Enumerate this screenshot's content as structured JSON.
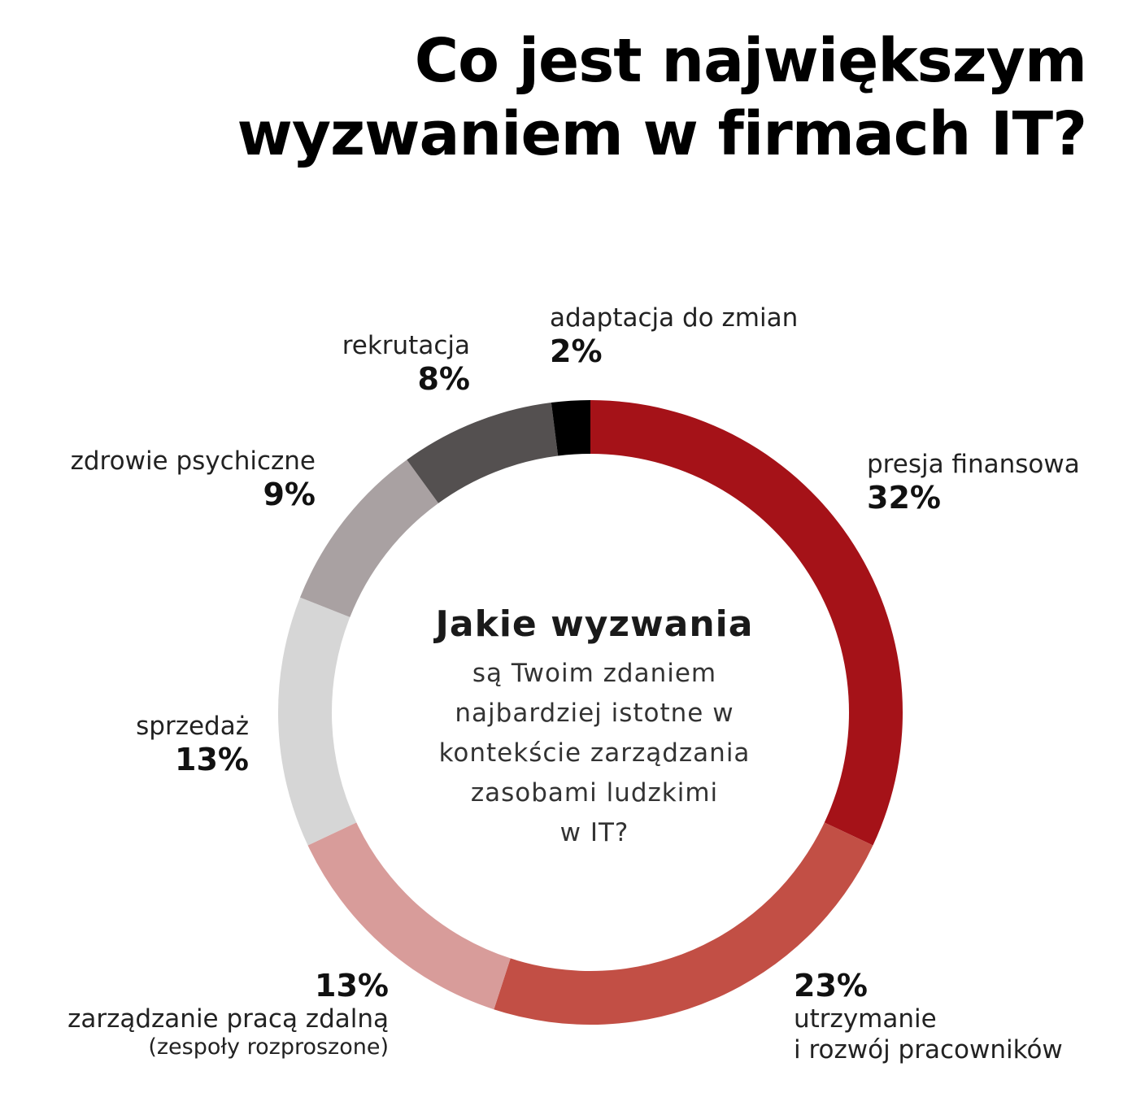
{
  "title": {
    "line1": "Co jest największym",
    "line2": "wyzwaniem w firmach IT?"
  },
  "center": {
    "question": "Jakie wyzwania",
    "desc": [
      "są Twoim zdaniem",
      "najbardziej istotne w",
      "kontekście zarządzania",
      "zasobami ludzkimi",
      "w IT?"
    ]
  },
  "chart_data": {
    "type": "pie",
    "donut": true,
    "series": [
      {
        "name": "presja finansowa",
        "value": 32,
        "label": "32%",
        "color": "#a51218"
      },
      {
        "name": "utrzymanie i rozwój pracowników",
        "value": 23,
        "label": "23%",
        "color": "#c24f45"
      },
      {
        "name": "zarządzanie pracą zdalną (zespoły rozproszone)",
        "value": 13,
        "label": "13%",
        "color": "#d89c9a"
      },
      {
        "name": "sprzedaż",
        "value": 13,
        "label": "13%",
        "color": "#d6d6d6"
      },
      {
        "name": "zdrowie psychiczne",
        "value": 9,
        "label": "9%",
        "color": "#a9a1a2"
      },
      {
        "name": "rekrutacja",
        "value": 8,
        "label": "8%",
        "color": "#545050"
      },
      {
        "name": "adaptacja do zmian",
        "value": 2,
        "label": "2%",
        "color": "#000000"
      }
    ]
  },
  "labels": {
    "presja": {
      "name": "presja finansowa",
      "pct": "32%"
    },
    "utrzymanie": {
      "pct": "23%",
      "line1": "utrzymanie",
      "line2": "i rozwój pracowników"
    },
    "zdalna": {
      "pct": "13%",
      "line1": "zarządzanie pracą zdalną",
      "line2": "(zespoły rozproszone)"
    },
    "sprzedaz": {
      "name": "sprzedaż",
      "pct": "13%"
    },
    "zdrowie": {
      "name": "zdrowie psychiczne",
      "pct": "9%"
    },
    "rekrutacja": {
      "name": "rekrutacja",
      "pct": "8%"
    },
    "adaptacja": {
      "name": "adaptacja do zmian",
      "pct": "2%"
    }
  }
}
